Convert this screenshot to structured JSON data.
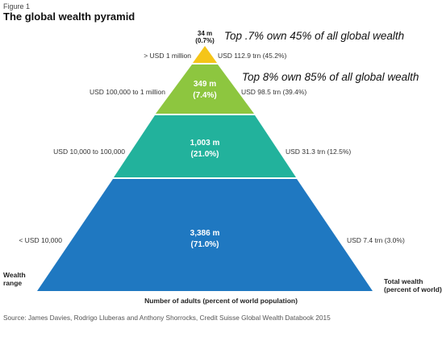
{
  "header": {
    "figure_label": "Figure 1",
    "title": "The global wealth pyramid"
  },
  "tiers": [
    {
      "adults": "34 m",
      "percent": "(0.7%)",
      "wealth_range": "> USD 1 million",
      "total_wealth": "USD 112.9 trn (45.2%)",
      "color": "#f5c518"
    },
    {
      "adults": "349 m",
      "percent": "(7.4%)",
      "wealth_range": "USD 100,000 to 1 million",
      "total_wealth": "USD 98.5 trn (39.4%)",
      "color": "#8dc63f"
    },
    {
      "adults": "1,003 m",
      "percent": "(21.0%)",
      "wealth_range": "USD 10,000 to 100,000",
      "total_wealth": "USD 31.3 trn (12.5%)",
      "color": "#22b29c"
    },
    {
      "adults": "3,386 m",
      "percent": "(71.0%)",
      "wealth_range": "< USD 10,000",
      "total_wealth": "USD 7.4 trn (3.0%)",
      "color": "#1f78c1"
    }
  ],
  "annotations": {
    "top_1": "Top .7% own 45% of all global wealth",
    "top_2": "Top 8% own 85% of all global wealth"
  },
  "axes": {
    "left_line1": "Wealth",
    "left_line2": "range",
    "right_line1": "Total wealth",
    "right_line2": "(percent of world)",
    "bottom": "Number of adults (percent of world population)"
  },
  "source": "Source: James Davies, Rodrigo Lluberas and Anthony Shorrocks, Credit Suisse Global Wealth Databook 2015"
}
